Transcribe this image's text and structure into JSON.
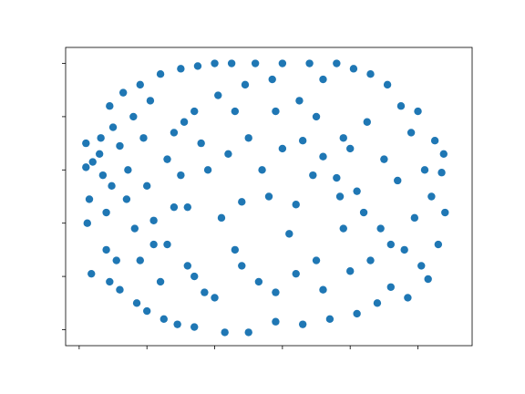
{
  "chart_data": {
    "type": "scatter",
    "title": "",
    "xlabel": "",
    "ylabel": "",
    "xlim": [
      -0.2,
      5.8
    ],
    "ylim": [
      -0.3,
      5.3
    ],
    "xticks": [
      0,
      1,
      2,
      3,
      4,
      5
    ],
    "yticks": [
      0,
      1,
      2,
      3,
      4,
      5
    ],
    "tick_labels_shown": false,
    "grid": false,
    "legend": "none",
    "colors": {
      "points": "#1f77b4",
      "axes": "#000000",
      "background": "#ffffff"
    },
    "series": [
      {
        "points": [
          [
            0.1,
            3.5
          ],
          [
            0.1,
            3.05
          ],
          [
            0.12,
            2.0
          ],
          [
            0.15,
            2.45
          ],
          [
            0.2,
            3.15
          ],
          [
            0.18,
            1.05
          ],
          [
            0.3,
            3.3
          ],
          [
            0.32,
            3.6
          ],
          [
            0.35,
            2.9
          ],
          [
            0.4,
            2.2
          ],
          [
            0.4,
            1.5
          ],
          [
            0.45,
            0.9
          ],
          [
            0.45,
            4.2
          ],
          [
            0.48,
            2.7
          ],
          [
            0.5,
            3.8
          ],
          [
            0.55,
            1.3
          ],
          [
            0.6,
            0.75
          ],
          [
            0.6,
            3.45
          ],
          [
            0.65,
            4.45
          ],
          [
            0.7,
            2.45
          ],
          [
            0.72,
            3.0
          ],
          [
            0.8,
            4.0
          ],
          [
            0.82,
            1.9
          ],
          [
            0.85,
            0.5
          ],
          [
            0.9,
            4.6
          ],
          [
            0.95,
            3.6
          ],
          [
            1.0,
            2.7
          ],
          [
            1.0,
            0.35
          ],
          [
            1.05,
            4.3
          ],
          [
            1.1,
            1.6
          ],
          [
            1.2,
            4.8
          ],
          [
            1.25,
            0.2
          ],
          [
            1.3,
            3.2
          ],
          [
            1.4,
            2.3
          ],
          [
            1.45,
            0.1
          ],
          [
            1.5,
            4.9
          ],
          [
            1.55,
            3.9
          ],
          [
            1.6,
            1.2
          ],
          [
            1.7,
            0.05
          ],
          [
            1.75,
            4.95
          ],
          [
            1.8,
            3.5
          ],
          [
            1.85,
            0.7
          ],
          [
            2.0,
            5.0
          ],
          [
            2.05,
            4.4
          ],
          [
            2.1,
            2.1
          ],
          [
            2.15,
            -0.05
          ],
          [
            2.25,
            5.0
          ],
          [
            2.3,
            1.5
          ],
          [
            2.4,
            2.4
          ],
          [
            2.45,
            4.6
          ],
          [
            2.5,
            -0.05
          ],
          [
            2.6,
            5.0
          ],
          [
            2.65,
            0.9
          ],
          [
            2.8,
            2.5
          ],
          [
            2.85,
            4.7
          ],
          [
            2.9,
            0.15
          ],
          [
            3.0,
            5.0
          ],
          [
            3.1,
            1.8
          ],
          [
            3.2,
            2.35
          ],
          [
            3.25,
            4.3
          ],
          [
            3.3,
            0.1
          ],
          [
            3.4,
            5.0
          ],
          [
            3.45,
            2.9
          ],
          [
            3.5,
            1.3
          ],
          [
            3.6,
            4.7
          ],
          [
            3.7,
            0.2
          ],
          [
            3.8,
            5.0
          ],
          [
            3.85,
            2.5
          ],
          [
            3.9,
            3.6
          ],
          [
            4.0,
            1.1
          ],
          [
            4.05,
            4.9
          ],
          [
            4.1,
            0.3
          ],
          [
            4.2,
            2.2
          ],
          [
            4.25,
            3.9
          ],
          [
            4.3,
            4.8
          ],
          [
            4.4,
            0.5
          ],
          [
            4.45,
            1.9
          ],
          [
            4.5,
            3.2
          ],
          [
            4.55,
            4.6
          ],
          [
            4.6,
            0.8
          ],
          [
            4.7,
            2.8
          ],
          [
            4.75,
            4.2
          ],
          [
            4.8,
            1.5
          ],
          [
            4.85,
            0.6
          ],
          [
            4.9,
            3.7
          ],
          [
            4.95,
            2.1
          ],
          [
            5.0,
            4.1
          ],
          [
            5.05,
            1.2
          ],
          [
            5.1,
            3.0
          ],
          [
            5.15,
            0.95
          ],
          [
            5.2,
            2.5
          ],
          [
            5.25,
            3.55
          ],
          [
            5.3,
            1.6
          ],
          [
            5.35,
            2.95
          ],
          [
            5.4,
            2.2
          ],
          [
            5.38,
            3.3
          ],
          [
            1.1,
            2.05
          ],
          [
            1.3,
            1.6
          ],
          [
            1.6,
            2.3
          ],
          [
            1.9,
            3.0
          ],
          [
            2.2,
            3.3
          ],
          [
            2.5,
            3.6
          ],
          [
            2.7,
            3.0
          ],
          [
            3.0,
            3.4
          ],
          [
            3.3,
            3.55
          ],
          [
            3.6,
            3.25
          ],
          [
            3.8,
            2.85
          ],
          [
            4.1,
            2.6
          ],
          [
            1.4,
            3.7
          ],
          [
            1.7,
            4.1
          ],
          [
            2.3,
            4.1
          ],
          [
            2.9,
            4.1
          ],
          [
            3.5,
            4.0
          ],
          [
            4.0,
            3.4
          ],
          [
            0.9,
            1.3
          ],
          [
            1.2,
            0.9
          ],
          [
            1.7,
            1.0
          ],
          [
            2.0,
            0.6
          ],
          [
            2.9,
            0.7
          ],
          [
            3.6,
            0.75
          ],
          [
            4.3,
            1.3
          ],
          [
            4.6,
            1.6
          ],
          [
            3.9,
            1.9
          ],
          [
            3.2,
            1.05
          ],
          [
            2.4,
            1.2
          ],
          [
            1.5,
            2.9
          ]
        ]
      }
    ]
  }
}
